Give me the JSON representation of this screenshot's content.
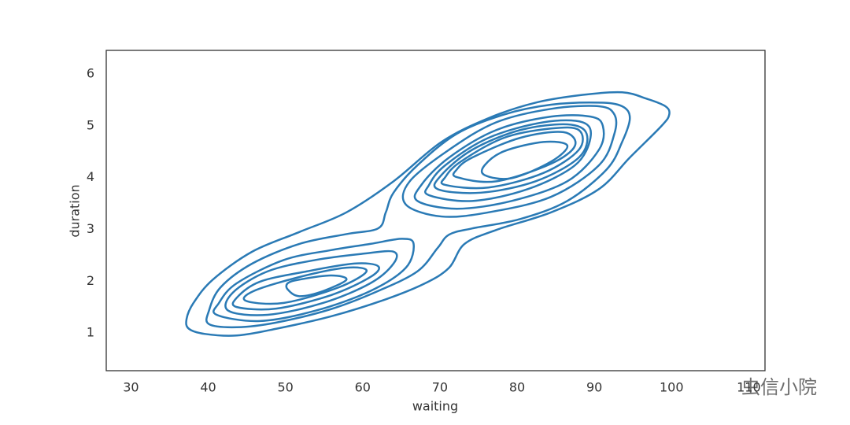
{
  "chart_data": {
    "type": "kde",
    "xlabel": "waiting",
    "ylabel": "duration",
    "xlim": [
      26.8,
      112.1
    ],
    "ylim": [
      0.27,
      6.46
    ],
    "xticks": [
      30,
      40,
      50,
      60,
      70,
      80,
      90,
      100,
      110
    ],
    "yticks": [
      1,
      2,
      3,
      4,
      5,
      6
    ],
    "color": "#2a7ab5",
    "watermark": "虫信小院",
    "contours": [
      {
        "x": [
          37.5,
          39.6,
          43.7,
          48.8,
          55.9,
          63.0,
          68.1,
          71.2,
          73.2,
          77.3,
          84.4,
          90.6,
          94.6,
          98.7,
          99.7,
          99.2,
          96.7,
          93.6,
          88.5,
          82.4,
          76.3,
          70.2,
          64.0,
          57.9,
          51.8,
          45.7,
          40.6,
          38.1,
          37.2
        ],
        "y": [
          1.08,
          0.98,
          0.95,
          1.08,
          1.32,
          1.65,
          1.96,
          2.26,
          2.72,
          2.99,
          3.33,
          3.78,
          4.39,
          5.0,
          5.22,
          5.38,
          5.53,
          5.65,
          5.6,
          5.45,
          5.15,
          4.69,
          3.93,
          3.33,
          2.95,
          2.57,
          2.03,
          1.58,
          1.27
        ]
      },
      {
        "x": [
          40.1,
          43.7,
          48.8,
          55.9,
          62.0,
          67.1,
          69.7,
          71.2,
          74.2,
          80.4,
          86.5,
          91.6,
          93.6,
          94.6,
          93.6,
          90.6,
          84.4,
          78.3,
          72.2,
          67.1,
          64.0,
          63.0,
          62.0,
          57.9,
          51.8,
          45.7,
          41.6,
          40.1
        ],
        "y": [
          1.17,
          1.11,
          1.2,
          1.46,
          1.81,
          2.19,
          2.64,
          2.9,
          3.02,
          3.2,
          3.55,
          4.16,
          4.69,
          5.15,
          5.38,
          5.45,
          5.41,
          5.22,
          4.85,
          4.24,
          3.71,
          3.33,
          3.02,
          2.91,
          2.72,
          2.34,
          1.88,
          1.43
        ]
      },
      {
        "x": [
          41.1,
          46.7,
          53.9,
          61.0,
          65.6,
          66.6,
          65.1,
          61.0,
          55.9,
          49.8,
          43.7,
          41.4
        ],
        "y": [
          1.35,
          1.23,
          1.43,
          1.81,
          2.26,
          2.72,
          2.82,
          2.72,
          2.6,
          2.41,
          1.96,
          1.58
        ]
      },
      {
        "x": [
          42.6,
          47.7,
          54.9,
          61.0,
          64.0,
          64.0,
          60.0,
          53.9,
          47.7,
          43.2
        ],
        "y": [
          1.43,
          1.35,
          1.58,
          1.96,
          2.34,
          2.57,
          2.53,
          2.41,
          2.19,
          1.78
        ]
      },
      {
        "x": [
          43.7,
          48.8,
          55.9,
          61.0,
          62.0,
          58.9,
          52.8,
          46.7,
          43.7
        ],
        "y": [
          1.5,
          1.47,
          1.73,
          2.08,
          2.29,
          2.34,
          2.19,
          1.99,
          1.68
        ]
      },
      {
        "x": [
          44.9,
          49.8,
          56.9,
          60.5,
          57.9,
          51.8,
          45.9
        ],
        "y": [
          1.62,
          1.58,
          1.88,
          2.19,
          2.26,
          2.08,
          1.81
        ]
      },
      {
        "x": [
          50.3,
          51.8,
          54.9,
          57.9,
          55.9,
          51.8,
          50.3
        ],
        "y": [
          1.84,
          1.71,
          1.81,
          2.03,
          2.11,
          2.03,
          1.96
        ]
      },
      {
        "x": [
          65.6,
          70.2,
          76.3,
          84.4,
          90.6,
          92.6,
          92.6,
          90.6,
          84.4,
          77.3,
          71.2,
          66.1
        ],
        "y": [
          3.48,
          3.25,
          3.33,
          3.63,
          4.24,
          4.85,
          5.22,
          5.38,
          5.33,
          5.07,
          4.54,
          3.93
        ]
      },
      {
        "x": [
          67.1,
          72.2,
          79.3,
          86.5,
          90.6,
          91.1,
          89.5,
          84.4,
          77.3,
          71.2,
          67.6
        ],
        "y": [
          3.55,
          3.4,
          3.55,
          3.93,
          4.54,
          5.0,
          5.18,
          5.18,
          4.92,
          4.39,
          3.86
        ]
      },
      {
        "x": [
          68.6,
          74.2,
          81.4,
          87.5,
          89.5,
          88.5,
          83.4,
          76.3,
          70.7,
          68.6
        ],
        "y": [
          3.66,
          3.55,
          3.78,
          4.24,
          4.77,
          5.07,
          5.07,
          4.77,
          4.24,
          3.86
        ]
      },
      {
        "x": [
          69.7,
          75.3,
          82.4,
          88.0,
          89.0,
          86.5,
          80.4,
          74.2,
          70.2
        ],
        "y": [
          3.78,
          3.71,
          3.93,
          4.39,
          4.85,
          5.03,
          4.92,
          4.54,
          4.05
        ]
      },
      {
        "x": [
          70.7,
          76.3,
          83.4,
          88.0,
          88.0,
          84.4,
          78.3,
          72.7,
          70.7
        ],
        "y": [
          3.86,
          3.81,
          4.09,
          4.54,
          4.92,
          4.95,
          4.77,
          4.31,
          4.01
        ]
      },
      {
        "x": [
          72.2,
          77.3,
          84.4,
          87.5,
          86.0,
          80.4,
          74.2,
          72.2
        ],
        "y": [
          4.01,
          3.93,
          4.27,
          4.62,
          4.88,
          4.77,
          4.39,
          4.16
        ]
      },
      {
        "x": [
          75.8,
          79.3,
          84.4,
          86.5,
          83.4,
          78.3,
          75.8
        ],
        "y": [
          4.05,
          3.99,
          4.31,
          4.62,
          4.69,
          4.51,
          4.24
        ]
      }
    ]
  }
}
